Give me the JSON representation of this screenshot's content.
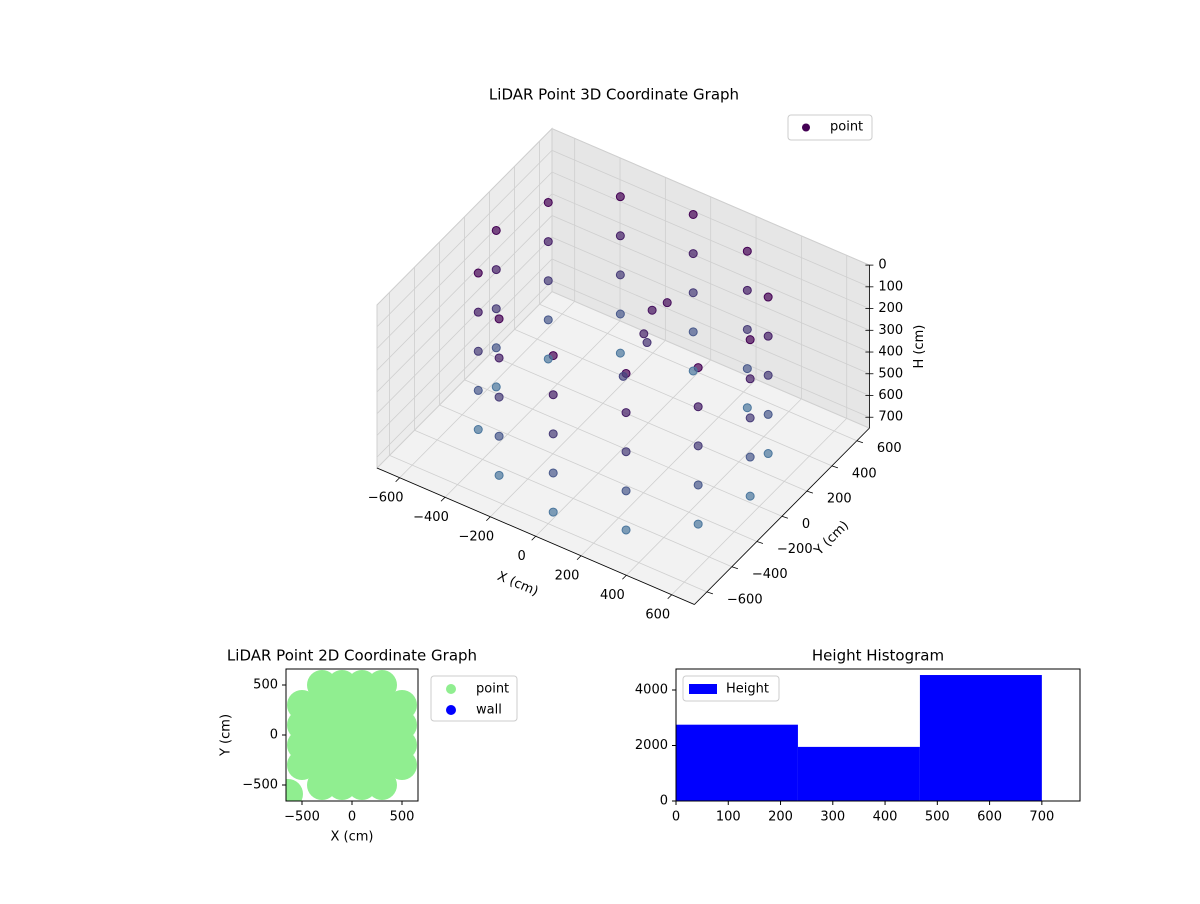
{
  "chart_data": [
    {
      "type": "scatter3d",
      "title": "LiDAR Point 3D Coordinate Graph",
      "xlabel": "X (cm)",
      "ylabel": "Y (cm)",
      "zlabel": "H (cm)",
      "color_range": [
        "#440154",
        "#4a7ba0"
      ],
      "series": [
        {
          "name": "point",
          "color": "#440154",
          "x": [
            560,
            485,
            280,
            0,
            -280,
            -485,
            -560,
            -485,
            -280,
            0,
            280,
            485,
            560,
            485,
            280,
            0,
            -280,
            -485,
            -560,
            -485,
            -280,
            0,
            280,
            485,
            560,
            485,
            280,
            0,
            -280,
            -485,
            -560,
            -485,
            -280,
            0,
            280,
            485,
            560,
            485,
            280,
            0,
            -280,
            -485,
            -560,
            -485,
            -280,
            0,
            280,
            485,
            560,
            485,
            280,
            0,
            -280,
            -485,
            -560,
            -485,
            -280,
            0,
            280,
            485,
            100,
            80,
            150,
            0,
            50
          ],
          "y": [
            0,
            280,
            485,
            560,
            485,
            280,
            0,
            -280,
            -485,
            -560,
            -485,
            -280,
            0,
            280,
            485,
            560,
            485,
            280,
            0,
            -280,
            -485,
            -560,
            -485,
            -280,
            0,
            280,
            485,
            560,
            485,
            280,
            0,
            -280,
            -485,
            -560,
            -485,
            -280,
            0,
            280,
            485,
            560,
            485,
            280,
            0,
            -280,
            -485,
            -560,
            -485,
            -280,
            0,
            280,
            485,
            560,
            485,
            280,
            0,
            -280,
            -485,
            -560,
            -485,
            -280,
            50,
            20,
            80,
            0,
            100
          ],
          "z": [
            0,
            0,
            0,
            0,
            0,
            0,
            0,
            0,
            0,
            0,
            0,
            0,
            180,
            180,
            180,
            180,
            180,
            180,
            180,
            180,
            180,
            180,
            180,
            180,
            360,
            360,
            360,
            360,
            360,
            360,
            360,
            360,
            360,
            360,
            360,
            360,
            540,
            540,
            540,
            540,
            540,
            540,
            540,
            540,
            540,
            540,
            540,
            540,
            720,
            720,
            720,
            720,
            720,
            720,
            720,
            720,
            720,
            720,
            720,
            720,
            100,
            200,
            60,
            420,
            300
          ]
        }
      ],
      "xlim": [
        -700,
        700
      ],
      "ylim": [
        -700,
        700
      ],
      "zlim": [
        0,
        750
      ],
      "z_inverted": true,
      "xticks": [
        {
          "value": -600,
          "label": "−600"
        },
        {
          "value": -400,
          "label": "−400"
        },
        {
          "value": -200,
          "label": "−200"
        },
        0,
        200,
        400,
        600
      ],
      "yticks": [
        {
          "value": -600,
          "label": "−600"
        },
        {
          "value": -400,
          "label": "−400"
        },
        {
          "value": -200,
          "label": "−200"
        },
        0,
        200,
        400,
        600
      ],
      "zticks": [
        0,
        100,
        200,
        300,
        400,
        500,
        600,
        700
      ]
    },
    {
      "type": "scatter",
      "title": "LiDAR Point 2D Coordinate Graph",
      "xlabel": "X (cm)",
      "ylabel": "Y (cm)",
      "series": [
        {
          "name": "point",
          "color": "#90ee90",
          "x": [
            -300,
            -100,
            100,
            300,
            -500,
            -300,
            -100,
            100,
            300,
            500,
            -500,
            -300,
            -100,
            100,
            300,
            500,
            -500,
            -300,
            -100,
            100,
            300,
            500,
            -500,
            -300,
            -100,
            100,
            300,
            500,
            -300,
            -100,
            100,
            300,
            -640
          ],
          "y": [
            -500,
            -500,
            -500,
            -500,
            -300,
            -300,
            -300,
            -300,
            -300,
            -300,
            -100,
            -100,
            -100,
            -100,
            -100,
            -100,
            100,
            100,
            100,
            100,
            100,
            100,
            300,
            300,
            300,
            300,
            300,
            300,
            500,
            500,
            500,
            500,
            -590
          ]
        },
        {
          "name": "wall",
          "color": "#0000ff",
          "x": [],
          "y": []
        }
      ],
      "xlim": [
        -660,
        660
      ],
      "ylim": [
        -660,
        660
      ],
      "xticks": [
        {
          "value": -500,
          "label": "−500"
        },
        0,
        500
      ],
      "yticks": [
        {
          "value": -500,
          "label": "−500"
        },
        0,
        500
      ]
    },
    {
      "type": "histogram",
      "title": "Height Histogram",
      "label": "Height",
      "color": "#0000ff",
      "bins": [
        0,
        233.3,
        466.7,
        700
      ],
      "counts": [
        2750,
        1950,
        4540
      ],
      "xlim": [
        0,
        773
      ],
      "ylim": [
        0,
        4757
      ],
      "xticks": [
        0,
        100,
        200,
        300,
        400,
        500,
        600,
        700
      ],
      "yticks": [
        0,
        2000,
        4000
      ]
    }
  ]
}
